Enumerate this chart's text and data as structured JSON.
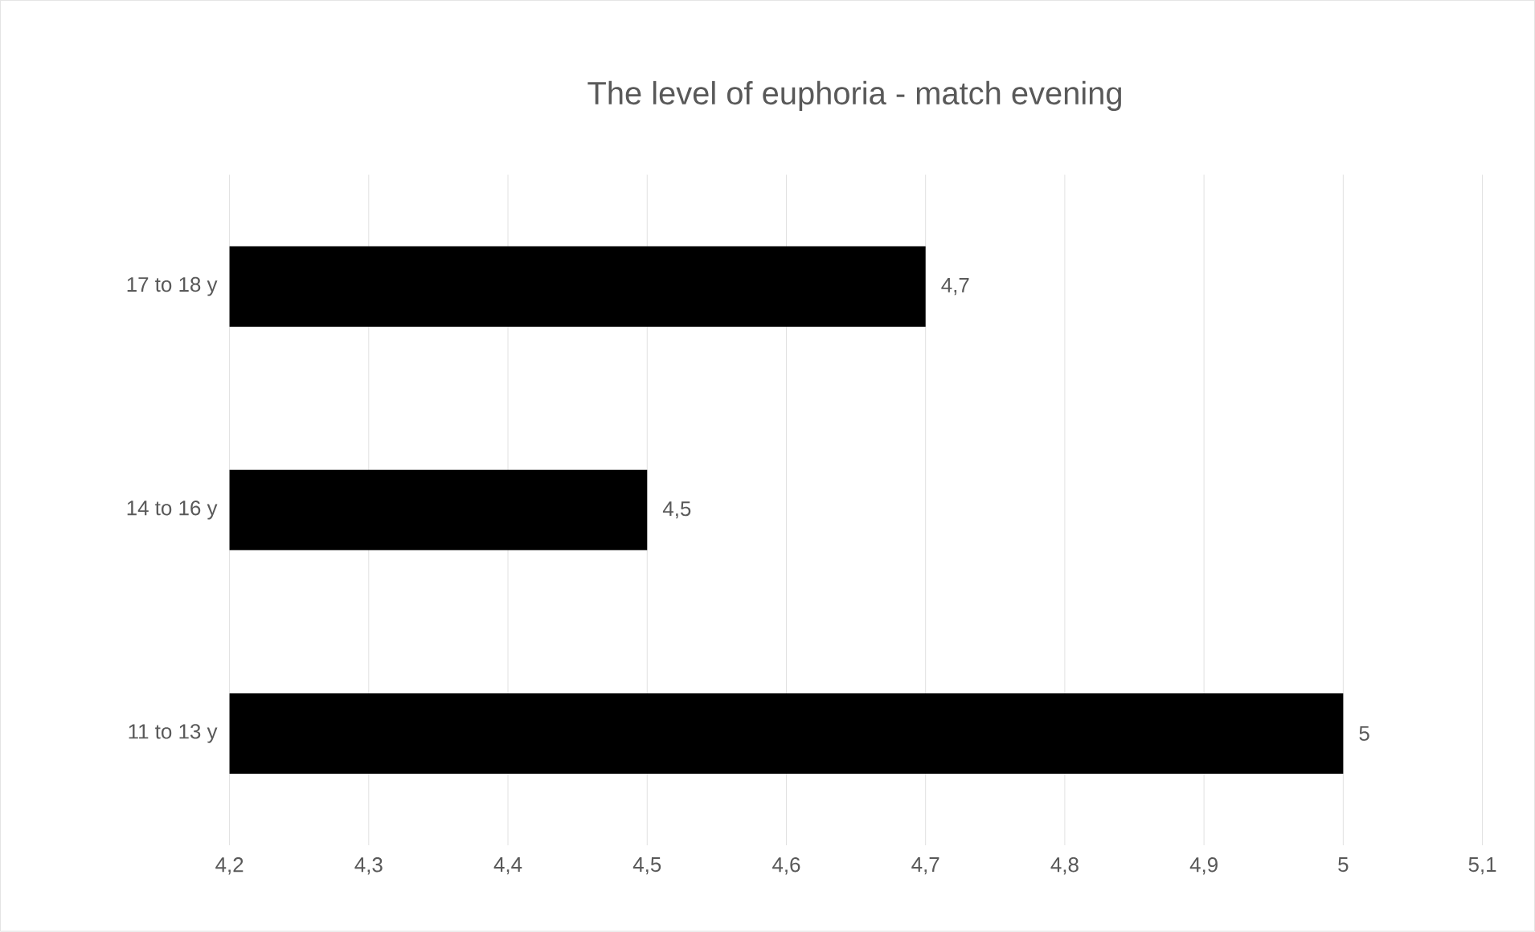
{
  "chart_data": {
    "type": "bar",
    "orientation": "horizontal",
    "title": "The level of euphoria - match evening",
    "categories": [
      "17 to 18 y",
      "14 to 16 y",
      "11 to 13 y"
    ],
    "values": [
      4.7,
      4.5,
      5
    ],
    "value_labels": [
      "4,7",
      "4,5",
      "5"
    ],
    "color": "#000000",
    "xlim": [
      4.2,
      5.1
    ],
    "xticks": [
      {
        "value": 4.2,
        "label": "4,2"
      },
      {
        "value": 4.3,
        "label": "4,3"
      },
      {
        "value": 4.4,
        "label": "4,4"
      },
      {
        "value": 4.5,
        "label": "4,5"
      },
      {
        "value": 4.6,
        "label": "4,6"
      },
      {
        "value": 4.7,
        "label": "4,7"
      },
      {
        "value": 4.8,
        "label": "4,8"
      },
      {
        "value": 4.9,
        "label": "4,9"
      },
      {
        "value": 5,
        "label": "5"
      },
      {
        "value": 5.1,
        "label": "5,1"
      }
    ],
    "grid": "x"
  }
}
